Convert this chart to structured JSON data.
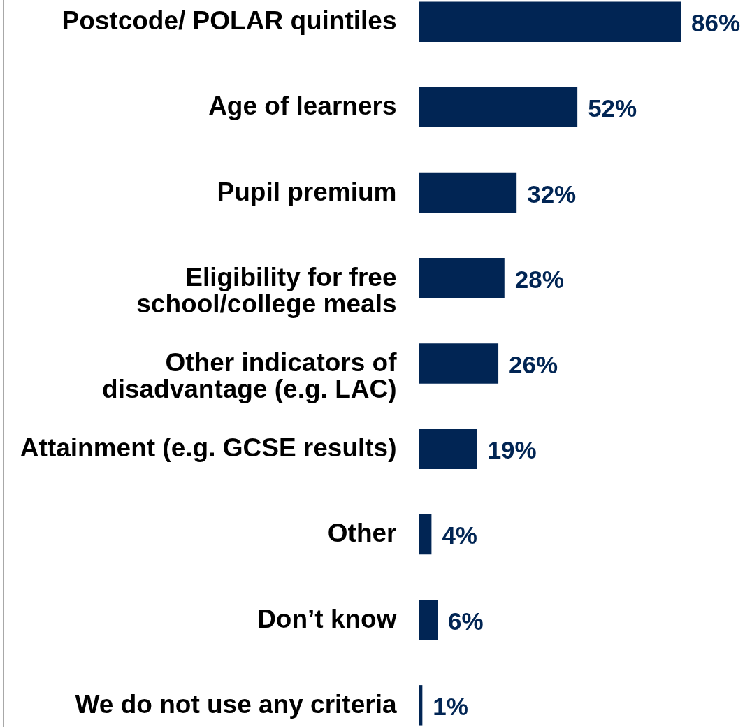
{
  "chart_data": {
    "type": "bar",
    "orientation": "horizontal",
    "categories": [
      "Postcode/ POLAR quintiles",
      "Age of learners",
      "Pupil premium",
      "Eligibility for free\nschool/college meals",
      "Other indicators of\ndisadvantage (e.g. LAC)",
      "Attainment (e.g. GCSE results)",
      "Other",
      "Don’t know",
      "We do not use any criteria"
    ],
    "values": [
      86,
      52,
      32,
      28,
      26,
      19,
      4,
      6,
      1
    ],
    "value_labels": [
      "86%",
      "52%",
      "32%",
      "28%",
      "26%",
      "19%",
      "4%",
      "6%",
      "1%"
    ],
    "color": "#012554",
    "tick_labels": "y"
  }
}
